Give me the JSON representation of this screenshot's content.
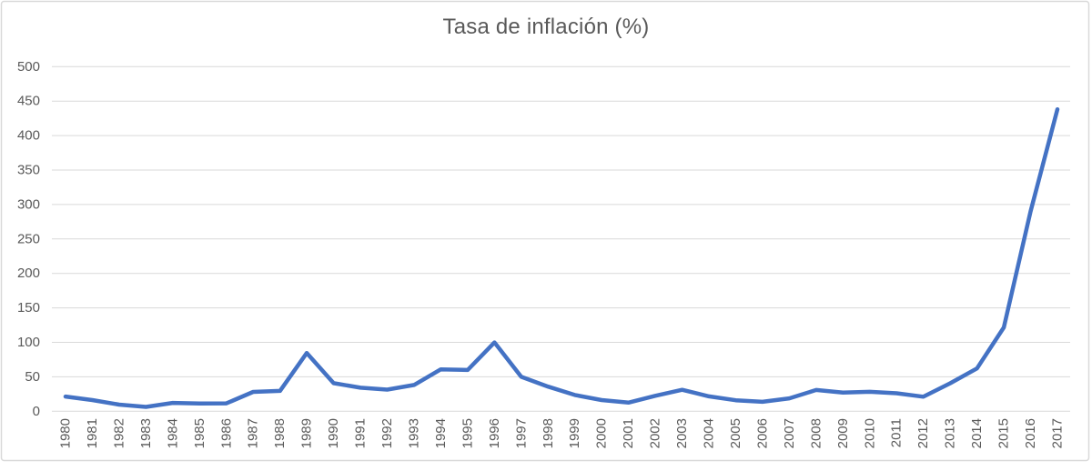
{
  "chart_data": {
    "type": "line",
    "title": "Tasa de inflación (%)",
    "xlabel": "",
    "ylabel": "",
    "categories": [
      "1980",
      "1981",
      "1982",
      "1983",
      "1984",
      "1985",
      "1986",
      "1987",
      "1988",
      "1989",
      "1990",
      "1991",
      "1992",
      "1993",
      "1994",
      "1995",
      "1996",
      "1997",
      "1998",
      "1999",
      "2000",
      "2001",
      "2002",
      "2003",
      "2004",
      "2005",
      "2006",
      "2007",
      "2008",
      "2009",
      "2010",
      "2011",
      "2012",
      "2013",
      "2014",
      "2015",
      "2016",
      "2017"
    ],
    "values": [
      21.4,
      16.2,
      9.6,
      6.3,
      12.2,
      11.4,
      11.5,
      28.1,
      29.5,
      84.5,
      40.7,
      34.2,
      31.4,
      38.1,
      60.8,
      59.9,
      99.9,
      50.0,
      35.8,
      23.6,
      16.2,
      12.5,
      22.4,
      31.1,
      21.7,
      16.0,
      13.7,
      18.7,
      30.9,
      27.1,
      28.2,
      26.1,
      21.1,
      40.6,
      62.2,
      121.7,
      290,
      438.1
    ],
    "ylim": [
      0,
      500
    ],
    "yticks": [
      0,
      50,
      100,
      150,
      200,
      250,
      300,
      350,
      400,
      450,
      500
    ],
    "grid": "horizontal",
    "legend": "none",
    "line_color": "#4472C4",
    "gridline_color": "#D9D9D9",
    "text_color": "#595959",
    "border_color": "#D9D9D9",
    "background_color": "#FFFFFF"
  }
}
